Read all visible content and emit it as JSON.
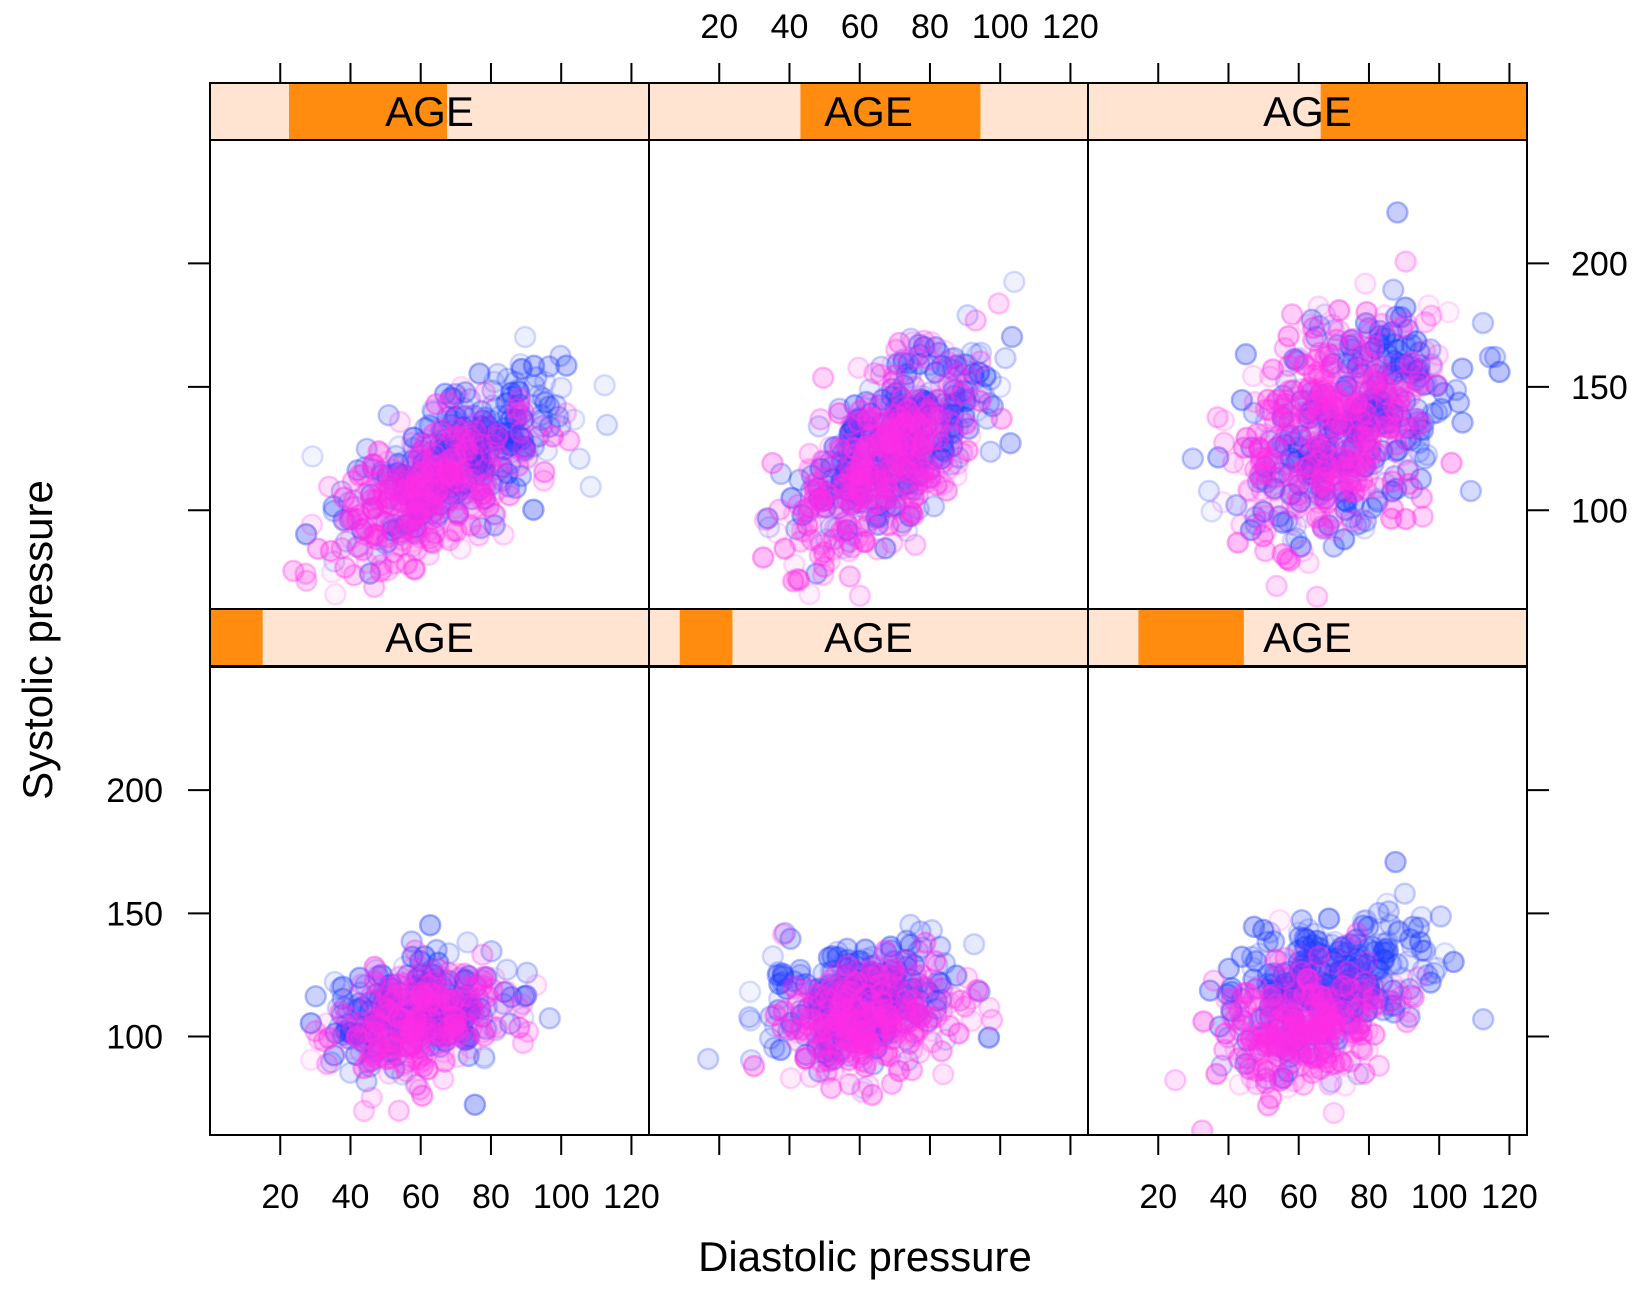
{
  "chart_data": {
    "type": "scatter",
    "layout": "lattice 3x2 panels conditioned on AGE shingle",
    "xlabel": "Diastolic pressure",
    "ylabel": "Systolic pressure",
    "x_ticks": [
      20,
      40,
      60,
      80,
      100,
      120
    ],
    "y_ticks": [
      100,
      150,
      200
    ],
    "xlim": [
      0,
      125
    ],
    "ylim": [
      60,
      250
    ],
    "colors": {
      "group_a": "#1f3cff",
      "group_b": "#ff2ee6",
      "strip_bg": "#ffe5d1",
      "strip_range": "#ff8c0e"
    },
    "panels": [
      {
        "strip_label": "AGE",
        "row": "bottom",
        "col": 1,
        "age_range_fraction": [
          0.0,
          0.12
        ],
        "clusters": [
          {
            "group": "a",
            "count": 260,
            "x_mean": 58,
            "x_sd": 13,
            "y_mean": 110,
            "y_sd": 11,
            "slope": 0.15
          },
          {
            "group": "b",
            "count": 240,
            "x_mean": 58,
            "x_sd": 12,
            "y_mean": 105,
            "y_sd": 11,
            "slope": 0.15
          }
        ]
      },
      {
        "strip_label": "AGE",
        "row": "bottom",
        "col": 2,
        "age_range_fraction": [
          0.07,
          0.19
        ],
        "clusters": [
          {
            "group": "a",
            "count": 280,
            "x_mean": 60,
            "x_sd": 13,
            "y_mean": 116,
            "y_sd": 11,
            "slope": 0.2
          },
          {
            "group": "b",
            "count": 260,
            "x_mean": 62,
            "x_sd": 12,
            "y_mean": 107,
            "y_sd": 11,
            "slope": 0.2
          }
        ]
      },
      {
        "strip_label": "AGE",
        "row": "bottom",
        "col": 3,
        "age_range_fraction": [
          0.115,
          0.355
        ],
        "clusters": [
          {
            "group": "a",
            "count": 300,
            "x_mean": 68,
            "x_sd": 14,
            "y_mean": 121,
            "y_sd": 13,
            "slope": 0.35
          },
          {
            "group": "b",
            "count": 280,
            "x_mean": 62,
            "x_sd": 13,
            "y_mean": 104,
            "y_sd": 12,
            "slope": 0.3
          }
        ]
      },
      {
        "strip_label": "AGE",
        "row": "top",
        "col": 1,
        "age_range_fraction": [
          0.18,
          0.54
        ],
        "clusters": [
          {
            "group": "a",
            "count": 320,
            "x_mean": 70,
            "x_sd": 15,
            "y_mean": 120,
            "y_sd": 13,
            "slope": 0.75
          },
          {
            "group": "b",
            "count": 300,
            "x_mean": 63,
            "x_sd": 14,
            "y_mean": 108,
            "y_sd": 13,
            "slope": 0.7
          }
        ]
      },
      {
        "strip_label": "AGE",
        "row": "top",
        "col": 2,
        "age_range_fraction": [
          0.345,
          0.755
        ],
        "clusters": [
          {
            "group": "a",
            "count": 320,
            "x_mean": 72,
            "x_sd": 13,
            "y_mean": 130,
            "y_sd": 16,
            "slope": 0.95
          },
          {
            "group": "b",
            "count": 320,
            "x_mean": 67,
            "x_sd": 13,
            "y_mean": 120,
            "y_sd": 16,
            "slope": 0.95
          }
        ]
      },
      {
        "strip_label": "AGE",
        "row": "top",
        "col": 3,
        "age_range_fraction": [
          0.53,
          1.0
        ],
        "clusters": [
          {
            "group": "a",
            "count": 330,
            "x_mean": 75,
            "x_sd": 15,
            "y_mean": 135,
            "y_sd": 20,
            "slope": 0.7
          },
          {
            "group": "b",
            "count": 340,
            "x_mean": 70,
            "x_sd": 14,
            "y_mean": 133,
            "y_sd": 22,
            "slope": 0.7
          }
        ]
      }
    ]
  }
}
